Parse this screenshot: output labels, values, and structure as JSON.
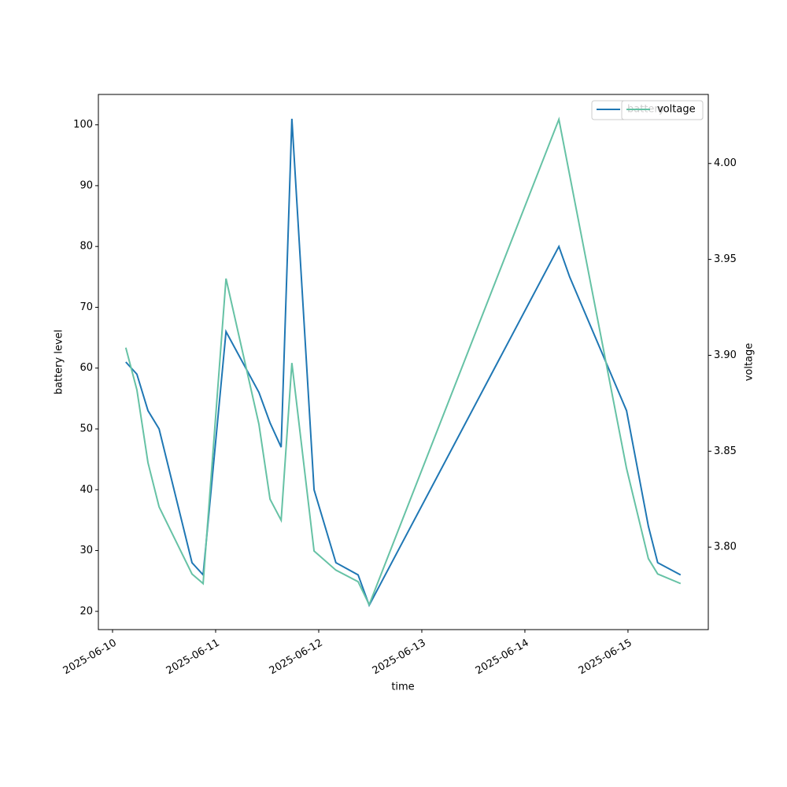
{
  "chart_data": {
    "type": "line",
    "xlabel": "time",
    "ylabel": "battery level",
    "y2label": "voltage",
    "x": [
      "2025-06-10T03:05",
      "2025-06-10T05:40",
      "2025-06-10T08:15",
      "2025-06-10T10:50",
      "2025-06-10T18:30",
      "2025-06-10T21:05",
      "2025-06-11T02:25",
      "2025-06-11T10:05",
      "2025-06-11T12:40",
      "2025-06-11T15:15",
      "2025-06-11T17:45",
      "2025-06-11T22:55",
      "2025-06-12T04:00",
      "2025-06-12T09:10",
      "2025-06-12T11:45",
      "2025-06-14T07:55",
      "2025-06-14T10:25",
      "2025-06-14T23:40",
      "2025-06-15T04:45",
      "2025-06-15T06:55",
      "2025-06-15T12:15"
    ],
    "series": [
      {
        "name": "battery",
        "color": "#1f77b4",
        "axis": "y",
        "values": [
          61,
          59,
          53,
          50,
          28,
          26,
          66,
          56,
          51,
          47,
          101,
          40,
          28,
          26,
          21,
          80,
          75,
          53,
          34,
          28,
          26
        ]
      },
      {
        "name": "voltage",
        "color": "#66c2a5",
        "axis": "y2",
        "values": [
          3.904,
          3.882,
          3.844,
          3.821,
          3.786,
          3.781,
          3.94,
          3.864,
          3.825,
          3.814,
          3.896,
          3.798,
          3.788,
          3.782,
          3.77,
          4.023,
          3.994,
          3.841,
          3.794,
          3.786,
          3.781
        ]
      }
    ],
    "xlim": [
      "2025-06-09T20:42",
      "2025-06-15T18:42"
    ],
    "xticks": [
      "2025-06-10",
      "2025-06-11",
      "2025-06-12",
      "2025-06-13",
      "2025-06-14",
      "2025-06-15"
    ],
    "ylim": [
      17,
      105
    ],
    "yticks": [
      20,
      30,
      40,
      50,
      60,
      70,
      80,
      90,
      100
    ],
    "y2lim": [
      3.757,
      4.036
    ],
    "y2ticks": [
      {
        "value": 3.8,
        "label": "3.80"
      },
      3.85,
      {
        "value": 3.9,
        "label": "3.90"
      },
      3.95,
      {
        "value": 4.0,
        "label": "4.00"
      }
    ],
    "legend": "upper right",
    "grid": false
  }
}
